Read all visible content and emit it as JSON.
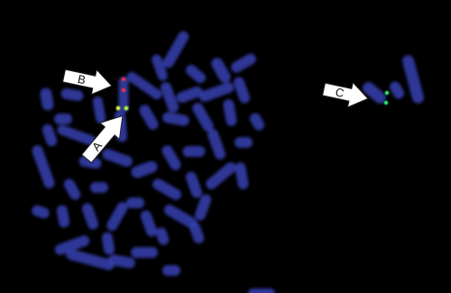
{
  "arrows": [
    {
      "label": "A"
    },
    {
      "label": "B"
    },
    {
      "label": "C"
    }
  ]
}
